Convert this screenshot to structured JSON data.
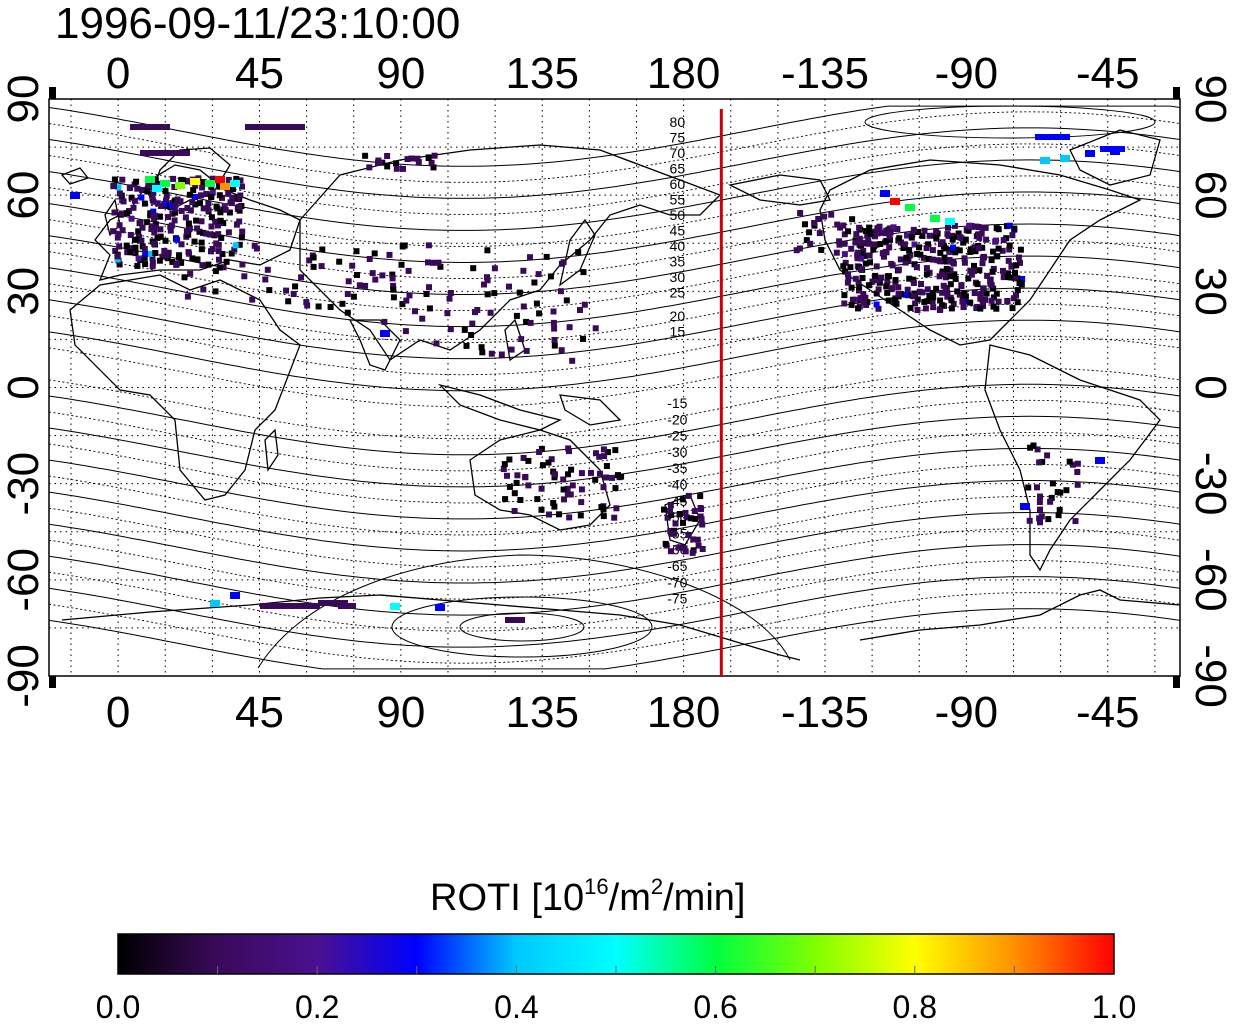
{
  "title": "1996-09-11/23:10:00",
  "map": {
    "lon_ticks_top": [
      "0",
      "45",
      "90",
      "135",
      "180",
      "-135",
      "-90",
      "-45"
    ],
    "lon_ticks_bottom": [
      "0",
      "45",
      "90",
      "135",
      "180",
      "-135",
      "-90",
      "-45"
    ],
    "lat_ticks_left": [
      "90",
      "60",
      "30",
      "0",
      "-30",
      "-60",
      "-90"
    ],
    "lat_ticks_right": [
      "90",
      "60",
      "30",
      "0",
      "-30",
      "-60",
      "-90"
    ],
    "lon_range": [
      -22,
      338
    ],
    "lat_range": [
      -90,
      90
    ],
    "terminator_lon": 192,
    "terminator_color": "#cc0000",
    "contour_labels_north": [
      "80",
      "75",
      "70",
      "65",
      "60",
      "55",
      "50",
      "45",
      "40",
      "35",
      "30",
      "25",
      "20",
      "15"
    ],
    "contour_labels_south": [
      "-15",
      "-20",
      "-25",
      "-30",
      "-35",
      "-40",
      "-45",
      "-50",
      "-55",
      "-60",
      "-65",
      "-70",
      "-75"
    ]
  },
  "colorbar": {
    "label_main": "ROTI  [10",
    "label_sup1": "16",
    "label_mid": "/m",
    "label_sup2": "2",
    "label_end": "/min]",
    "ticks": [
      "0.0",
      "0.2",
      "0.4",
      "0.6",
      "0.8",
      "1.0"
    ],
    "min": 0.0,
    "max": 1.0,
    "stops": [
      "#000000",
      "#3a0a5a",
      "#4a1090",
      "#0000ff",
      "#00c8ff",
      "#00ffff",
      "#00ff40",
      "#80ff00",
      "#ffff00",
      "#ff9000",
      "#ff0000"
    ]
  }
}
